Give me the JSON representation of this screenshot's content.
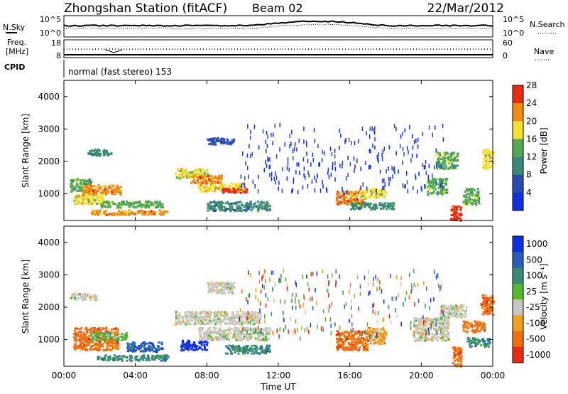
{
  "header": {
    "station": "Zhongshan Station (fitACF)",
    "beam": "Beam 02",
    "date": "22/Mar/2012"
  },
  "status_panels": {
    "nsky_label": "N.Sky",
    "nsky_ticks": [
      "10^5",
      "10^0"
    ],
    "nsearch_label": "N.Search",
    "nsearch_ticks": [
      "10^5",
      "10^0"
    ],
    "freq_label_1": "Freq.",
    "freq_label_2": "[MHz]",
    "freq_ticks": [
      "18",
      "8"
    ],
    "nave_label": "Nave",
    "nave_ticks": [
      "60",
      "0"
    ],
    "cpid_label": "CPID",
    "cpid_text": "normal (fast stereo) 153"
  },
  "chart_data": [
    {
      "type": "heatmap",
      "name": "power",
      "ylabel": "Slant Range [km]",
      "xlabel": "Time UT",
      "xlim": [
        0,
        24
      ],
      "ylim": [
        180,
        4500
      ],
      "y_ticks": [
        "1000",
        "2000",
        "3000",
        "4000"
      ],
      "colorbar_label": "Power [dB]",
      "colorbar_ticks": [
        "4",
        "8",
        "12",
        "16",
        "20",
        "24",
        "28"
      ],
      "colorbar_colors": [
        "#1030e0",
        "#2a4cb0",
        "#3a8a78",
        "#52a850",
        "#f2e030",
        "#f08c10",
        "#e82a10"
      ],
      "regions": [
        {
          "t": [
            1.3,
            2.6
          ],
          "r": [
            2200,
            2400
          ],
          "level": 2
        },
        {
          "t": [
            0.3,
            1.5
          ],
          "r": [
            1100,
            1500
          ],
          "level": 3
        },
        {
          "t": [
            0.5,
            2.2
          ],
          "r": [
            700,
            1000
          ],
          "level": 4
        },
        {
          "t": [
            1.0,
            3.2
          ],
          "r": [
            1000,
            1300
          ],
          "level": 5
        },
        {
          "t": [
            1.5,
            5.8
          ],
          "r": [
            380,
            520
          ],
          "level": 5
        },
        {
          "t": [
            2.0,
            5.5
          ],
          "r": [
            600,
            800
          ],
          "level": 3
        },
        {
          "t": [
            6.2,
            8.0
          ],
          "r": [
            1500,
            1800
          ],
          "level": 4
        },
        {
          "t": [
            7.0,
            8.8
          ],
          "r": [
            1350,
            1600
          ],
          "level": 5
        },
        {
          "t": [
            7.5,
            10.0
          ],
          "r": [
            1100,
            1350
          ],
          "level": 4
        },
        {
          "t": [
            8.8,
            10.2
          ],
          "r": [
            1050,
            1200
          ],
          "level": 6
        },
        {
          "t": [
            8.0,
            9.5
          ],
          "r": [
            2550,
            2750
          ],
          "level": 1
        },
        {
          "t": [
            8.0,
            11.5
          ],
          "r": [
            500,
            800
          ],
          "level": 2
        },
        {
          "t": [
            15.2,
            16.8
          ],
          "r": [
            700,
            1100
          ],
          "level": 5
        },
        {
          "t": [
            16.5,
            18.0
          ],
          "r": [
            900,
            1200
          ],
          "level": 4
        },
        {
          "t": [
            16.0,
            18.5
          ],
          "r": [
            550,
            750
          ],
          "level": 2
        },
        {
          "t": [
            20.3,
            21.4
          ],
          "r": [
            1000,
            1500
          ],
          "level": 3
        },
        {
          "t": [
            20.8,
            22.0
          ],
          "r": [
            1800,
            2300
          ],
          "level": 3
        },
        {
          "t": [
            21.6,
            22.2
          ],
          "r": [
            200,
            650
          ],
          "level": 6
        },
        {
          "t": [
            22.3,
            23.2
          ],
          "r": [
            700,
            1200
          ],
          "level": 3
        },
        {
          "t": [
            23.4,
            24.0
          ],
          "r": [
            1800,
            2400
          ],
          "level": 4
        }
      ]
    },
    {
      "type": "heatmap",
      "name": "velocity",
      "ylabel": "Slant Range [km]",
      "xlabel": "Time UT",
      "xlim": [
        0,
        24
      ],
      "ylim": [
        180,
        4500
      ],
      "y_ticks": [
        "1000",
        "2000",
        "3000",
        "4000"
      ],
      "x_ticks": [
        "00:00",
        "04:00",
        "08:00",
        "12:00",
        "16:00",
        "20:00",
        "00:00"
      ],
      "colorbar_label": "Velocity [m s⁻¹]",
      "colorbar_ticks": [
        "1000",
        "500",
        "100",
        "25",
        "-25",
        "-100",
        "-500",
        "-1000"
      ],
      "colorbar_colors": [
        "#1030e0",
        "#2a5fb8",
        "#3a8a78",
        "#52b830",
        "#c8c8c0",
        "#f0a020",
        "#f07010",
        "#e82a10"
      ],
      "regions": [
        {
          "t": [
            0.3,
            1.8
          ],
          "r": [
            2250,
            2450
          ],
          "level": 4
        },
        {
          "t": [
            0.5,
            3.0
          ],
          "r": [
            700,
            1400
          ],
          "level": 6
        },
        {
          "t": [
            1.5,
            3.5
          ],
          "r": [
            1000,
            1250
          ],
          "level": 3
        },
        {
          "t": [
            1.8,
            5.8
          ],
          "r": [
            380,
            550
          ],
          "level": 2
        },
        {
          "t": [
            3.5,
            5.5
          ],
          "r": [
            650,
            950
          ],
          "level": 1
        },
        {
          "t": [
            6.2,
            11.0
          ],
          "r": [
            1500,
            1900
          ],
          "level": 4
        },
        {
          "t": [
            7.5,
            11.5
          ],
          "r": [
            1000,
            1400
          ],
          "level": 4
        },
        {
          "t": [
            8.0,
            9.5
          ],
          "r": [
            2450,
            2800
          ],
          "level": 4
        },
        {
          "t": [
            6.5,
            8.0
          ],
          "r": [
            700,
            1000
          ],
          "level": 0
        },
        {
          "t": [
            9.0,
            11.5
          ],
          "r": [
            600,
            850
          ],
          "level": 2
        },
        {
          "t": [
            15.2,
            17.0
          ],
          "r": [
            700,
            1300
          ],
          "level": 6
        },
        {
          "t": [
            17.0,
            18.0
          ],
          "r": [
            900,
            1400
          ],
          "level": 5
        },
        {
          "t": [
            19.5,
            21.5
          ],
          "r": [
            1000,
            1700
          ],
          "level": 4
        },
        {
          "t": [
            21.0,
            22.5
          ],
          "r": [
            1700,
            2100
          ],
          "level": 4
        },
        {
          "t": [
            21.7,
            22.2
          ],
          "r": [
            200,
            800
          ],
          "level": 6
        },
        {
          "t": [
            22.3,
            23.5
          ],
          "r": [
            1250,
            1600
          ],
          "level": 6
        },
        {
          "t": [
            22.5,
            23.8
          ],
          "r": [
            800,
            1100
          ],
          "level": 2
        },
        {
          "t": [
            23.3,
            24.0
          ],
          "r": [
            1800,
            2400
          ],
          "level": 6
        }
      ]
    }
  ]
}
